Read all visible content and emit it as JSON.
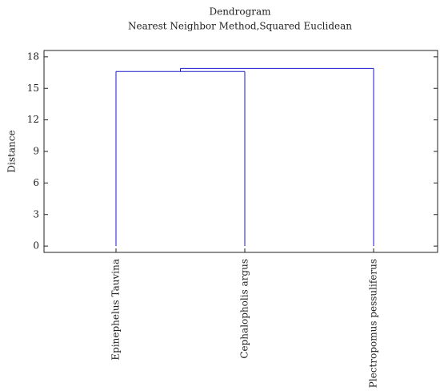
{
  "chart_data": {
    "type": "dendrogram",
    "title": "Dendrogram",
    "subtitle": "Nearest Neighbor Method,Squared Euclidean",
    "y_label": "Distance",
    "categories": [
      "Epinephelus Tauvina",
      "Cephalopholis argus",
      "Plectropomus pessuliferus"
    ],
    "links": [
      {
        "children": [
          0,
          1
        ],
        "height": 16.6
      },
      {
        "children": [
          3,
          2
        ],
        "height": 16.9
      }
    ],
    "color": "#1a1acc",
    "ylim": [
      -0.6,
      18.6
    ],
    "yticks": [
      0,
      3,
      6,
      9,
      12,
      15,
      18
    ]
  }
}
